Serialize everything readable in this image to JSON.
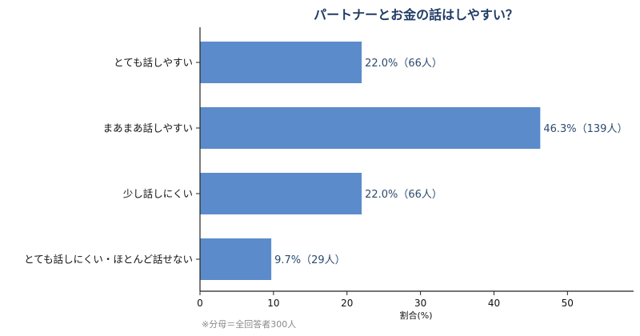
{
  "chart_data": {
    "type": "bar",
    "orientation": "horizontal",
    "title": "パートナーとお金の話はしやすい？",
    "categories": [
      "とても話しやすい",
      "まあまあ話しやすい",
      "少し話しにくい",
      "とても話しにくい・ほとんど話せない"
    ],
    "values": [
      22.0,
      46.3,
      22.0,
      9.7
    ],
    "data_labels": [
      "22.0%（66人）",
      "46.3%（139人）",
      "22.0%（66人）",
      "9.7%（29人）"
    ],
    "xlabel": "割合(%)",
    "ylabel": "",
    "xlim": [
      0,
      59
    ],
    "xticks": [
      0,
      10,
      20,
      30,
      40,
      50
    ],
    "tick_labels": [
      "0",
      "10",
      "20",
      "30",
      "40",
      "50"
    ],
    "grid": false,
    "note": "※分母＝全回答者300人",
    "colors": {
      "bar": "#5b8bcb",
      "title": "#1f3b64",
      "data_label": "#2c4a6e",
      "axis": "#222222"
    }
  }
}
